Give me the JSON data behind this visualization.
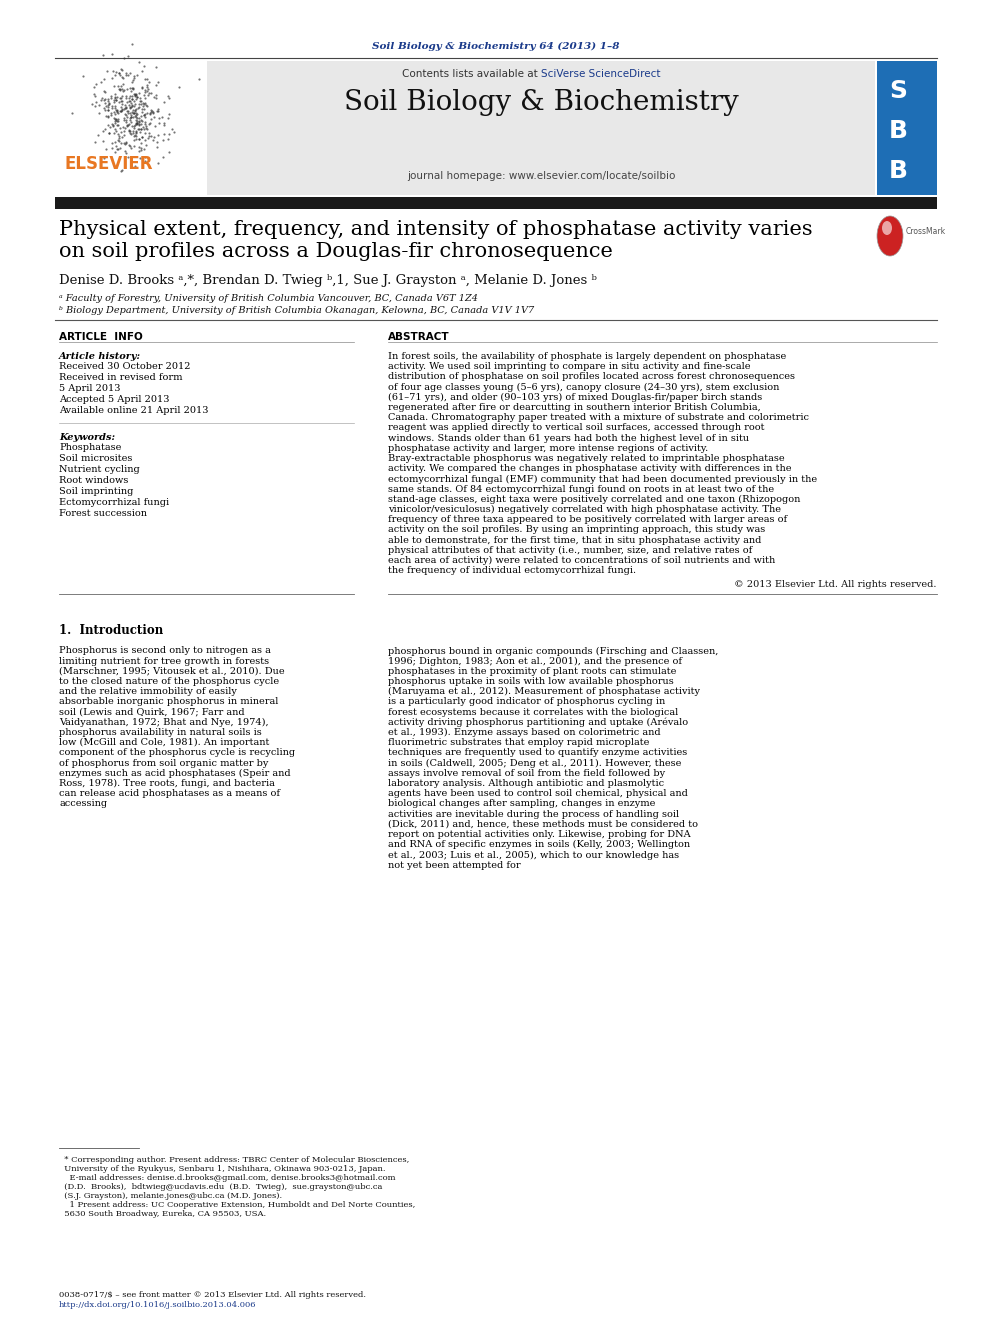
{
  "journal_ref": "Soil Biology & Biochemistry 64 (2013) 1–8",
  "journal_name": "Soil Biology & Biochemistry",
  "journal_homepage": "journal homepage: www.elsevier.com/locate/soilbio",
  "contents_line_pre": "Contents lists available at ",
  "contents_sciverse": "SciVerse ScienceDirect",
  "title_line1": "Physical extent, frequency, and intensity of phosphatase activity varies",
  "title_line2": "on soil profiles across a Douglas-fir chronosequence",
  "author_line": "Denise D. Brooks ᵃ,*, Brendan D. Twieg ᵇ,1, Sue J. Grayston ᵃ, Melanie D. Jones ᵇ",
  "affil_a": "ᵃ Faculty of Forestry, University of British Columbia Vancouver, BC, Canada V6T 1Z4",
  "affil_b": "ᵇ Biology Department, University of British Columbia Okanagan, Kelowna, BC, Canada V1V 1V7",
  "article_info_header": "ARTICLE  INFO",
  "abstract_header": "ABSTRACT",
  "article_history_label": "Article history:",
  "history_lines": [
    "Received 30 October 2012",
    "Received in revised form",
    "5 April 2013",
    "Accepted 5 April 2013",
    "Available online 21 April 2013"
  ],
  "keywords_label": "Keywords:",
  "keywords": [
    "Phosphatase",
    "Soil microsites",
    "Nutrient cycling",
    "Root windows",
    "Soil imprinting",
    "Ectomycorrhizal fungi",
    "Forest succession"
  ],
  "abstract_text": "In forest soils, the availability of phosphate is largely dependent on phosphatase activity. We used soil imprinting to compare in situ activity and fine-scale distribution of phosphatase on soil profiles located across forest chronosequences of four age classes young (5–6 yrs), canopy closure (24–30 yrs), stem exclusion (61–71 yrs), and older (90–103 yrs) of mixed Douglas-fir/paper birch stands regenerated after fire or dearcutting in southern interior British Columbia, Canada. Chromatography paper treated with a mixture of substrate and colorimetric reagent was applied directly to vertical soil surfaces, accessed through root windows. Stands older than 61 years had both the highest level of in situ phosphatase activity and larger, more intense regions of activity. Bray-extractable phosphorus was negatively related to imprintable phosphatase activity. We compared the changes in phosphatase activity with differences in the ectomycorrhizal fungal (EMF) community that had been documented previously in the same stands. Of 84 ectomycorrhizal fungi found on roots in at least two of the stand-age classes, eight taxa were positively correlated and one taxon (Rhizopogon vinicolor/vesiculosus) negatively correlated with high phosphatase activity. The frequency of three taxa appeared to be positively correlated with larger areas of activity on the soil profiles. By using an imprinting approach, this study was able to demonstrate, for the first time, that in situ phosphatase activity and physical attributes of that activity (i.e., number, size, and relative rates of each area of activity) were related to concentrations of soil nutrients and with the frequency of individual ectomycorrhizal fungi.",
  "copyright": "© 2013 Elsevier Ltd. All rights reserved.",
  "section1_header": "1.  Introduction",
  "intro_indent": "   Phosphorus is second only to nitrogen as a limiting nutrient for tree growth in forests (Marschner, 1995; Vitousek et al., 2010). Due to the closed nature of the phosphorus cycle and the relative immobility of easily absorbable inorganic phosphorus in mineral soil (Lewis and Quirk, 1967; Farr and Vaidyanathan, 1972; Bhat and Nye, 1974), phosphorus availability in natural soils is low (McGill and Cole, 1981). An important component of the phosphorus cycle is recycling of phosphorus from soil organic matter by enzymes such as acid phosphatases (Speir and Ross, 1978). Tree roots, fungi, and bacteria can release acid phosphatases as a means of accessing",
  "intro_right": "phosphorus bound in organic compounds (Firsching and Claassen, 1996; Dighton, 1983; Aon et al., 2001), and the presence of phosphatases in the proximity of plant roots can stimulate phosphorus uptake in soils with low available phosphorus (Maruyama et al., 2012). Measurement of phosphatase activity is a particularly good indicator of phosphorus cycling in forest ecosystems because it correlates with the biological activity driving phosphorus partitioning and uptake (Arévalo et al., 1993).\n   Enzyme assays based on colorimetric and fluorimetric substrates that employ rapid microplate techniques are frequently used to quantify enzyme activities in soils (Caldwell, 2005; Deng et al., 2011). However, these assays involve removal of soil from the field followed by laboratory analysis. Although antibiotic and plasmolytic agents have been used to control soil chemical, physical and biological changes after sampling, changes in enzyme activities are inevitable during the process of handling soil (Dick, 2011) and, hence, these methods must be considered to report on potential activities only. Likewise, probing for DNA and RNA of specific enzymes in soils (Kelly, 2003; Wellington et al., 2003; Luis et al., 2005), which to our knowledge has not yet been attempted for",
  "footnote_line1": "  * Corresponding author. Present address: TBRC Center of Molecular Biosciences,",
  "footnote_line2": "  University of the Ryukyus, Senbaru 1, Nishihara, Okinawa 903-0213, Japan.",
  "footnote_line3": "    E-mail addresses: denise.d.brooks@gmail.com, denise.brooks3@hotmail.com",
  "footnote_line4": "  (D.D.  Brooks),  bdtwieg@ucdavis.edu  (B.D.  Twieg),  sue.grayston@ubc.ca",
  "footnote_line5": "  (S.J. Grayston), melanie.jones@ubc.ca (M.D. Jones).",
  "footnote_line6": "    1 Present address: UC Cooperative Extension, Humboldt and Del Norte Counties,",
  "footnote_line7": "  5630 South Broadway, Eureka, CA 95503, USA.",
  "issn_line": "0038-0717/$ – see front matter © 2013 Elsevier Ltd. All rights reserved.",
  "doi_line": "http://dx.doi.org/10.1016/j.soilbio.2013.04.006",
  "elsevier_color": "#e87722",
  "link_color": "#1a3a8a",
  "journal_ref_color": "#1a3a8a",
  "gray_bg": "#e8e8e8",
  "sbb_blue": "#1e6eb5"
}
